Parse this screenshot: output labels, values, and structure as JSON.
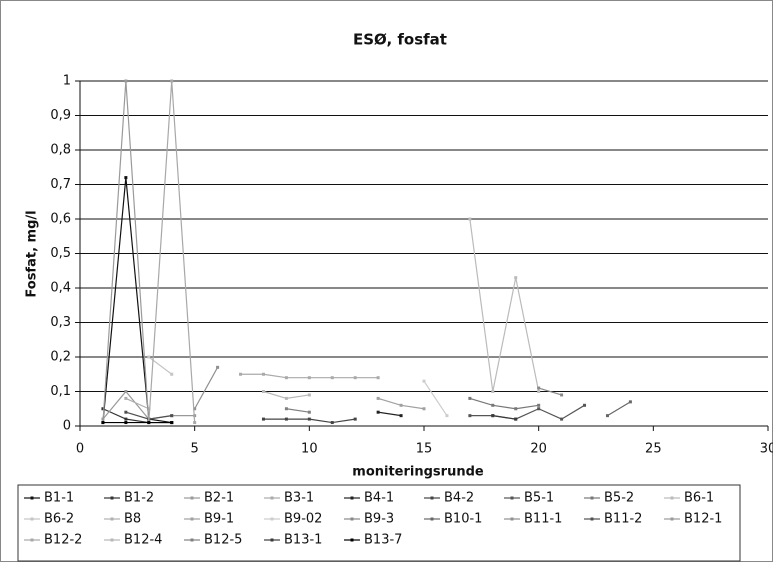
{
  "chart_data": {
    "type": "line",
    "title": "ESØ, fosfat",
    "x_label": "moniteringsrunde",
    "y_label": "Fosfat, mg/l",
    "x": [
      1,
      2,
      3,
      4,
      5,
      6,
      7,
      8,
      9,
      10,
      11,
      12,
      13,
      14,
      15,
      16,
      17,
      18,
      19,
      20,
      21,
      22,
      23,
      24
    ],
    "xlim": [
      0,
      30
    ],
    "xticks": [
      0,
      5,
      10,
      15,
      20,
      25,
      30
    ],
    "ylim": [
      0,
      1
    ],
    "yticks": [
      0,
      {
        "value": 0.1,
        "label": "0,1"
      },
      {
        "value": 0.2,
        "label": "0,2"
      },
      {
        "value": 0.3,
        "label": "0,3"
      },
      {
        "value": 0.4,
        "label": "0,4"
      },
      {
        "value": 0.5,
        "label": "0,5"
      },
      {
        "value": 0.6,
        "label": "0,6"
      },
      {
        "value": 0.7,
        "label": "0,7"
      },
      {
        "value": 0.8,
        "label": "0,8"
      },
      {
        "value": 0.9,
        "label": "0,9"
      },
      1
    ],
    "grid": true,
    "legend": "bottom",
    "series": [
      {
        "name": "B1-1",
        "color": "#111111",
        "values": [
          0.01,
          0.72,
          0.02,
          0.01,
          null,
          null,
          null,
          null,
          null,
          null,
          null,
          null,
          null,
          null,
          null,
          null,
          null,
          null,
          null,
          null,
          null,
          null,
          null,
          null
        ]
      },
      {
        "name": "B1-2",
        "color": "#333333",
        "values": [
          0.05,
          0.02,
          0.01,
          0.01,
          null,
          null,
          null,
          null,
          null,
          null,
          null,
          null,
          null,
          null,
          null,
          null,
          null,
          null,
          null,
          null,
          null,
          null,
          null,
          null
        ]
      },
      {
        "name": "B2-1",
        "color": "#999999",
        "values": [
          0.02,
          0.1,
          0.02,
          0.03,
          0.03,
          null,
          null,
          null,
          null,
          null,
          null,
          null,
          null,
          null,
          null,
          null,
          null,
          null,
          null,
          null,
          null,
          null,
          null,
          null
        ]
      },
      {
        "name": "B3-1",
        "color": "#aaaaaa",
        "values": [
          null,
          null,
          null,
          null,
          null,
          null,
          0.15,
          0.15,
          0.14,
          0.14,
          0.14,
          0.14,
          0.14,
          null,
          null,
          null,
          null,
          null,
          null,
          null,
          null,
          null,
          null,
          null
        ]
      },
      {
        "name": "B4-1",
        "color": "#222222",
        "values": [
          null,
          null,
          null,
          null,
          null,
          null,
          null,
          null,
          null,
          null,
          null,
          null,
          0.04,
          0.03,
          null,
          null,
          null,
          null,
          null,
          null,
          null,
          null,
          null,
          null
        ]
      },
      {
        "name": "B4-2",
        "color": "#444444",
        "values": [
          null,
          null,
          null,
          null,
          null,
          null,
          null,
          0.02,
          0.02,
          0.02,
          0.01,
          0.02,
          null,
          null,
          null,
          null,
          null,
          null,
          null,
          null,
          null,
          null,
          null,
          null
        ]
      },
      {
        "name": "B5-1",
        "color": "#555555",
        "values": [
          null,
          null,
          null,
          null,
          null,
          null,
          null,
          null,
          null,
          null,
          null,
          null,
          null,
          null,
          null,
          null,
          0.03,
          0.03,
          0.02,
          0.05,
          0.02,
          0.06,
          null,
          null
        ]
      },
      {
        "name": "B5-2",
        "color": "#777777",
        "values": [
          null,
          null,
          null,
          null,
          null,
          null,
          null,
          null,
          null,
          null,
          null,
          null,
          null,
          null,
          null,
          null,
          0.08,
          0.06,
          0.05,
          0.06,
          null,
          null,
          null,
          null
        ]
      },
      {
        "name": "B6-1",
        "color": "#bbbbbb",
        "values": [
          null,
          null,
          null,
          null,
          null,
          null,
          null,
          null,
          null,
          null,
          null,
          null,
          null,
          null,
          null,
          null,
          0.6,
          0.1,
          0.43,
          0.1,
          null,
          null,
          null,
          null
        ]
      },
      {
        "name": "B6-2",
        "color": "#c4c4c4",
        "values": [
          null,
          null,
          0.2,
          0.15,
          null,
          null,
          null,
          null,
          null,
          null,
          null,
          null,
          null,
          null,
          null,
          null,
          null,
          null,
          null,
          null,
          null,
          null,
          null,
          null
        ]
      },
      {
        "name": "B8",
        "color": "#b0b0b0",
        "values": [
          null,
          0.08,
          0.05,
          null,
          null,
          null,
          null,
          null,
          null,
          null,
          null,
          null,
          null,
          null,
          null,
          null,
          null,
          null,
          null,
          null,
          null,
          null,
          null,
          null
        ]
      },
      {
        "name": "B9-1",
        "color": "#a0a0a0",
        "values": [
          null,
          null,
          null,
          null,
          null,
          null,
          null,
          null,
          null,
          null,
          null,
          null,
          0.08,
          0.06,
          0.05,
          null,
          null,
          null,
          null,
          null,
          null,
          null,
          null,
          null
        ]
      },
      {
        "name": "B9-02",
        "color": "#cccccc",
        "values": [
          null,
          null,
          null,
          null,
          null,
          null,
          null,
          null,
          null,
          null,
          null,
          null,
          null,
          null,
          0.13,
          0.03,
          null,
          null,
          null,
          null,
          null,
          null,
          null,
          null
        ]
      },
      {
        "name": "B9-3",
        "color": "#888888",
        "values": [
          null,
          null,
          null,
          null,
          null,
          null,
          null,
          null,
          null,
          null,
          null,
          null,
          null,
          null,
          null,
          null,
          null,
          null,
          null,
          0.11,
          0.09,
          null,
          null,
          null
        ]
      },
      {
        "name": "B10-1",
        "color": "#666666",
        "values": [
          null,
          null,
          null,
          null,
          null,
          null,
          null,
          null,
          null,
          null,
          null,
          null,
          null,
          null,
          null,
          null,
          null,
          null,
          null,
          null,
          null,
          null,
          0.03,
          0.07
        ]
      },
      {
        "name": "B11-1",
        "color": "#909090",
        "values": [
          null,
          null,
          null,
          null,
          0.05,
          0.17,
          null,
          null,
          null,
          null,
          null,
          null,
          null,
          null,
          null,
          null,
          null,
          null,
          null,
          null,
          null,
          null,
          null,
          null
        ]
      },
      {
        "name": "B11-2",
        "color": "#505050",
        "values": [
          null,
          0.04,
          0.02,
          0.03,
          null,
          null,
          null,
          null,
          null,
          null,
          null,
          null,
          null,
          null,
          null,
          null,
          null,
          null,
          null,
          null,
          null,
          null,
          null,
          null
        ]
      },
      {
        "name": "B12-1",
        "color": "#9a9a9a",
        "values": [
          0.01,
          1,
          0.01,
          null,
          null,
          null,
          null,
          null,
          null,
          null,
          null,
          null,
          null,
          null,
          null,
          null,
          null,
          null,
          null,
          null,
          null,
          null,
          null,
          null
        ]
      },
      {
        "name": "B12-2",
        "color": "#a8a8a8",
        "values": [
          null,
          null,
          0.01,
          1,
          0.01,
          null,
          null,
          null,
          null,
          null,
          null,
          null,
          null,
          null,
          null,
          null,
          null,
          null,
          null,
          null,
          null,
          null,
          null,
          null
        ]
      },
      {
        "name": "B12-4",
        "color": "#b8b8b8",
        "values": [
          null,
          null,
          null,
          null,
          null,
          null,
          null,
          0.1,
          0.08,
          0.09,
          null,
          null,
          null,
          null,
          null,
          null,
          null,
          null,
          null,
          null,
          null,
          null,
          null,
          null
        ]
      },
      {
        "name": "B12-5",
        "color": "#808080",
        "values": [
          null,
          null,
          null,
          null,
          null,
          null,
          null,
          null,
          0.05,
          0.04,
          null,
          null,
          null,
          null,
          null,
          null,
          null,
          null,
          null,
          null,
          null,
          null,
          null,
          null
        ]
      },
      {
        "name": "B13-1",
        "color": "#3a3a3a",
        "values": [
          null,
          null,
          null,
          null,
          null,
          null,
          null,
          null,
          null,
          null,
          null,
          null,
          null,
          null,
          null,
          null,
          null,
          0.03,
          0.02,
          null,
          null,
          null,
          null,
          null
        ]
      },
      {
        "name": "B13-7",
        "color": "#000000",
        "values": [
          0.01,
          0.01,
          0.01,
          0.01,
          null,
          null,
          null,
          null,
          null,
          null,
          null,
          null,
          null,
          null,
          null,
          null,
          null,
          null,
          null,
          null,
          null,
          null,
          null,
          null
        ]
      }
    ]
  }
}
